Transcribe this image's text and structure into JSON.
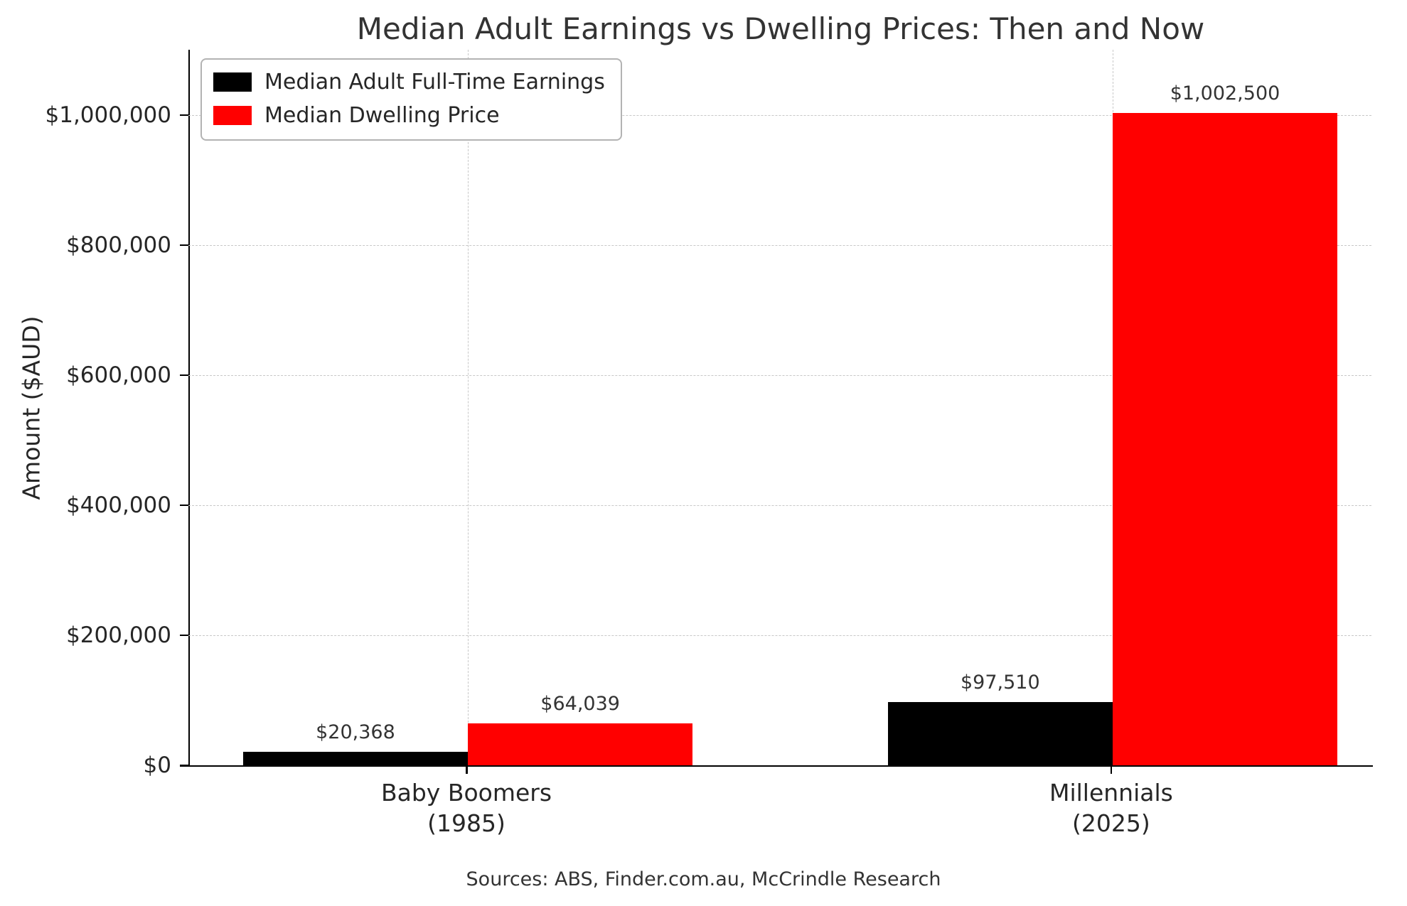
{
  "title": "Median Adult Earnings vs Dwelling Prices: Then and Now",
  "source_note": "Sources: ABS, Finder.com.au, McCrindle Research",
  "colors": {
    "earnings": "#000000",
    "dwelling": "#ff0000",
    "grid": "#c8c8c8",
    "axis": "#000000",
    "text": "#333333",
    "background": "#ffffff"
  },
  "chart_data": {
    "type": "bar",
    "title": "Median Adult Earnings vs Dwelling Prices: Then and Now",
    "xlabel": "",
    "ylabel": "Amount ($AUD)",
    "categories": [
      "Baby Boomers\n(1985)",
      "Millennials\n(2025)"
    ],
    "series": [
      {
        "name": "Median Adult Full-Time Earnings",
        "color": "#000000",
        "values": [
          20368,
          97510
        ],
        "labels": [
          "$20,368",
          "$97,510"
        ]
      },
      {
        "name": "Median Dwelling Price",
        "color": "#ff0000",
        "values": [
          64039,
          1002500
        ],
        "labels": [
          "$64,039",
          "$1,002,500"
        ]
      }
    ],
    "ylim": [
      0,
      1100000
    ],
    "yticks": [
      0,
      200000,
      400000,
      600000,
      800000,
      1000000
    ],
    "ytick_labels": [
      "$0",
      "$200,000",
      "$400,000",
      "$600,000",
      "$800,000",
      "$1,000,000"
    ],
    "grid": true,
    "legend_position": "upper left",
    "layout": {
      "category_centers": [
        0.235,
        0.78
      ],
      "bar_width": 0.19
    }
  }
}
